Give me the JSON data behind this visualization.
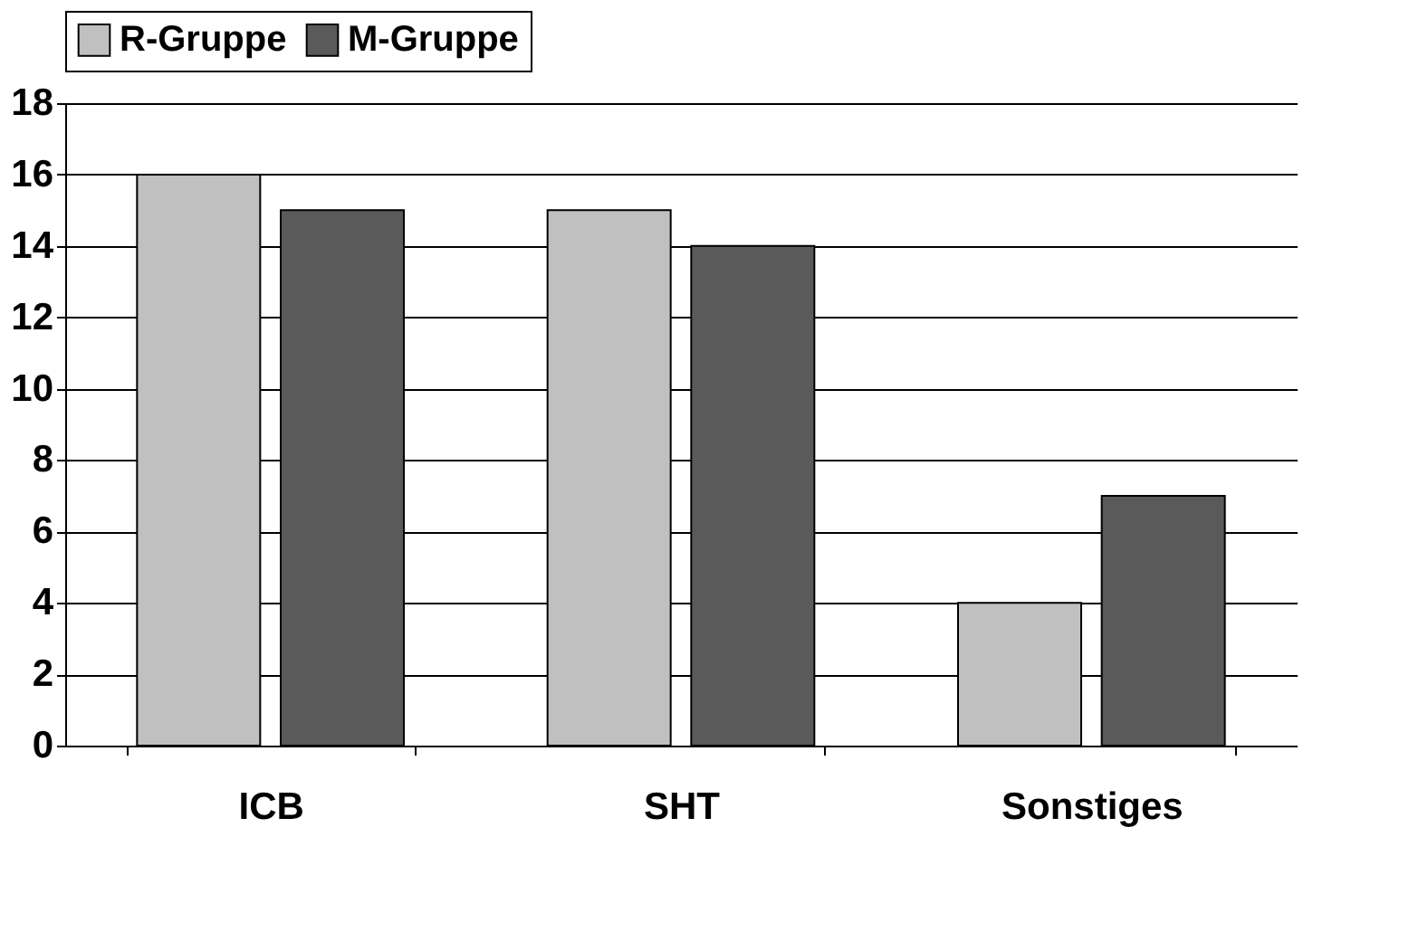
{
  "chart_data": {
    "type": "bar",
    "categories": [
      "ICB",
      "SHT",
      "Sonstiges"
    ],
    "series": [
      {
        "name": "R-Gruppe",
        "color": "#c0c0c0",
        "values": [
          16,
          15,
          4
        ]
      },
      {
        "name": "M-Gruppe",
        "color": "#5a5a5a",
        "values": [
          15,
          14,
          7
        ]
      }
    ],
    "ylim": [
      0,
      18
    ],
    "yticks": [
      0,
      2,
      4,
      6,
      8,
      10,
      12,
      14,
      16,
      18
    ],
    "grid": "y",
    "legend": "top"
  }
}
